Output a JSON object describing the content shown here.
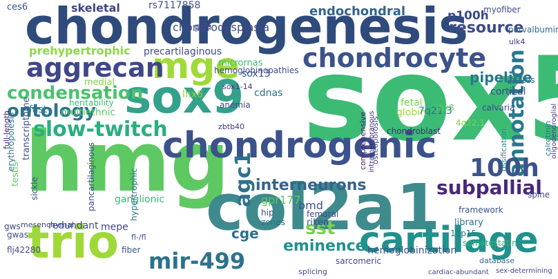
{
  "words": [
    {
      "text": "sox5",
      "color": "#3cbb75"
    },
    {
      "text": "chondrogenesis",
      "color": "#2f4b7c"
    },
    {
      "text": "hmg",
      "color": "#5ec962"
    },
    {
      "text": "chondrogenic",
      "color": "#3b528b"
    },
    {
      "text": "col2a1",
      "color": "#3e8a8c"
    },
    {
      "text": "sox9",
      "color": "#34a18b"
    },
    {
      "text": "trio",
      "color": "#9fd938"
    },
    {
      "text": "cartilage",
      "color": "#21918c"
    },
    {
      "text": "mge",
      "color": "#a0da39"
    },
    {
      "text": "chondrocyte",
      "color": "#3b528b"
    },
    {
      "text": "aggrecan",
      "color": "#404788"
    },
    {
      "text": "slow-twitch",
      "color": "#29af7f"
    },
    {
      "text": "mir-499",
      "color": "#2c728e"
    },
    {
      "text": "condensation",
      "color": "#4ac16d"
    },
    {
      "text": "ontology",
      "color": "#2c728e"
    },
    {
      "text": "annotation",
      "color": "#2a788e"
    },
    {
      "text": "100h",
      "color": "#3b528b"
    },
    {
      "text": "agc1",
      "color": "#2c728e"
    },
    {
      "text": "subpallial",
      "color": "#482878"
    },
    {
      "text": "eminence",
      "color": "#21918c"
    },
    {
      "text": "interneurons",
      "color": "#33638d"
    },
    {
      "text": "sst",
      "color": "#7ad151"
    },
    {
      "text": "cge",
      "color": "#2d708e"
    },
    {
      "text": "endochondral",
      "color": "#33638d"
    },
    {
      "text": "resource",
      "color": "#3e4a89"
    },
    {
      "text": "pipeline",
      "color": "#2a788e"
    },
    {
      "text": "prehypertrophic",
      "color": "#8fd744"
    },
    {
      "text": "skeletal",
      "color": "#414487"
    },
    {
      "text": "chondrodysplasia",
      "color": "#3e4989"
    },
    {
      "text": "p100h",
      "color": "#3e4989"
    },
    {
      "text": "rs7117858",
      "color": "#3b528b"
    },
    {
      "text": "myofiber",
      "color": "#3e4989"
    },
    {
      "text": "parvalbumin",
      "color": "#31688e"
    },
    {
      "text": "ulk4",
      "color": "#443983"
    },
    {
      "text": "ces6",
      "color": "#3b528b"
    },
    {
      "text": "poa",
      "color": "#404688"
    },
    {
      "text": "precartilaginous",
      "color": "#3e4a89"
    },
    {
      "text": "cortical",
      "color": "#3e4989"
    },
    {
      "text": "sox13",
      "color": "#3b528b"
    },
    {
      "text": "micrornas",
      "color": "#3cbb75"
    },
    {
      "text": "hemoglobinopathies",
      "color": "#3e4989"
    },
    {
      "text": "lhx6",
      "color": "#8fd744"
    },
    {
      "text": "medial",
      "color": "#7ad151"
    },
    {
      "text": "sox1-14",
      "color": "#453781"
    },
    {
      "text": "cdnas",
      "color": "#2d708e"
    },
    {
      "text": "heritability",
      "color": "#3dbc74"
    },
    {
      "text": "plates",
      "color": "#2c728e"
    },
    {
      "text": "calvaria",
      "color": "#3e4989"
    },
    {
      "text": "fast",
      "color": "#2a788e"
    },
    {
      "text": "anemia",
      "color": "#3f4788"
    },
    {
      "text": "multiethnic",
      "color": "#5ec962"
    },
    {
      "text": "fetal",
      "color": "#7ad151"
    },
    {
      "text": "globin",
      "color": "#9fd938"
    },
    {
      "text": "7q21.3",
      "color": "#2a788e"
    },
    {
      "text": "4q22.1",
      "color": "#7ad151"
    },
    {
      "text": "lhx8",
      "color": "#5ec962"
    },
    {
      "text": "slow-twitch",
      "color": "#29af7f"
    },
    {
      "text": "erythropoiesis",
      "color": "#2c728e"
    },
    {
      "text": "transcriptome",
      "color": "#3b528b"
    },
    {
      "text": "testis",
      "color": "#5ec962"
    },
    {
      "text": "full-length",
      "color": "#482475"
    },
    {
      "text": "zbtb40",
      "color": "#453781"
    },
    {
      "text": "chondroblast",
      "color": "#482878"
    },
    {
      "text": "osteoporosis",
      "color": "#3e4a89"
    },
    {
      "text": "comprehensive",
      "color": "#481b6d"
    },
    {
      "text": "intramembranous",
      "color": "#482475"
    },
    {
      "text": "ossification",
      "color": "#21918c"
    },
    {
      "text": "calretinin",
      "color": "#2a788e"
    },
    {
      "text": "oligodendroglial",
      "color": "#453781"
    },
    {
      "text": "spine",
      "color": "#3e4a89"
    },
    {
      "text": "gpr177",
      "color": "#5ec962"
    },
    {
      "text": "bmd",
      "color": "#3b528b"
    },
    {
      "text": "femoral",
      "color": "#404688"
    },
    {
      "text": "riken",
      "color": "#3b528b"
    },
    {
      "text": "hip",
      "color": "#3e4989"
    },
    {
      "text": "zones",
      "color": "#2c728e"
    },
    {
      "text": "framework",
      "color": "#3b528b"
    },
    {
      "text": "library",
      "color": "#2c728e"
    },
    {
      "text": "11p15",
      "color": "#2a788e"
    },
    {
      "text": "somatostatin",
      "color": "#35b779"
    },
    {
      "text": "ganglionic",
      "color": "#35b779"
    },
    {
      "text": "mepe",
      "color": "#3e4989"
    },
    {
      "text": "redundant",
      "color": "#3e4989"
    },
    {
      "text": "pancartilaginous",
      "color": "#3e4a89"
    },
    {
      "text": "hypertrophic",
      "color": "#2c728e"
    },
    {
      "text": "sickle",
      "color": "#3b528b"
    },
    {
      "text": "gwas",
      "color": "#3e4a89"
    },
    {
      "text": "gws",
      "color": "#3e4a89"
    },
    {
      "text": "mesenchymal",
      "color": "#3e4989"
    },
    {
      "text": "fl-/fl",
      "color": "#3b528b"
    },
    {
      "text": "flj42280",
      "color": "#3e4989"
    },
    {
      "text": "fiber",
      "color": "#3b528b"
    },
    {
      "text": "sarcomeric",
      "color": "#3e4989"
    },
    {
      "text": "hemoglobinization",
      "color": "#3b528b"
    },
    {
      "text": "splicing",
      "color": "#3e4989"
    },
    {
      "text": "database",
      "color": "#31688e"
    },
    {
      "text": "sex-determining",
      "color": "#3e4989"
    },
    {
      "text": "cardiac-abundant",
      "color": "#3e4989"
    }
  ]
}
